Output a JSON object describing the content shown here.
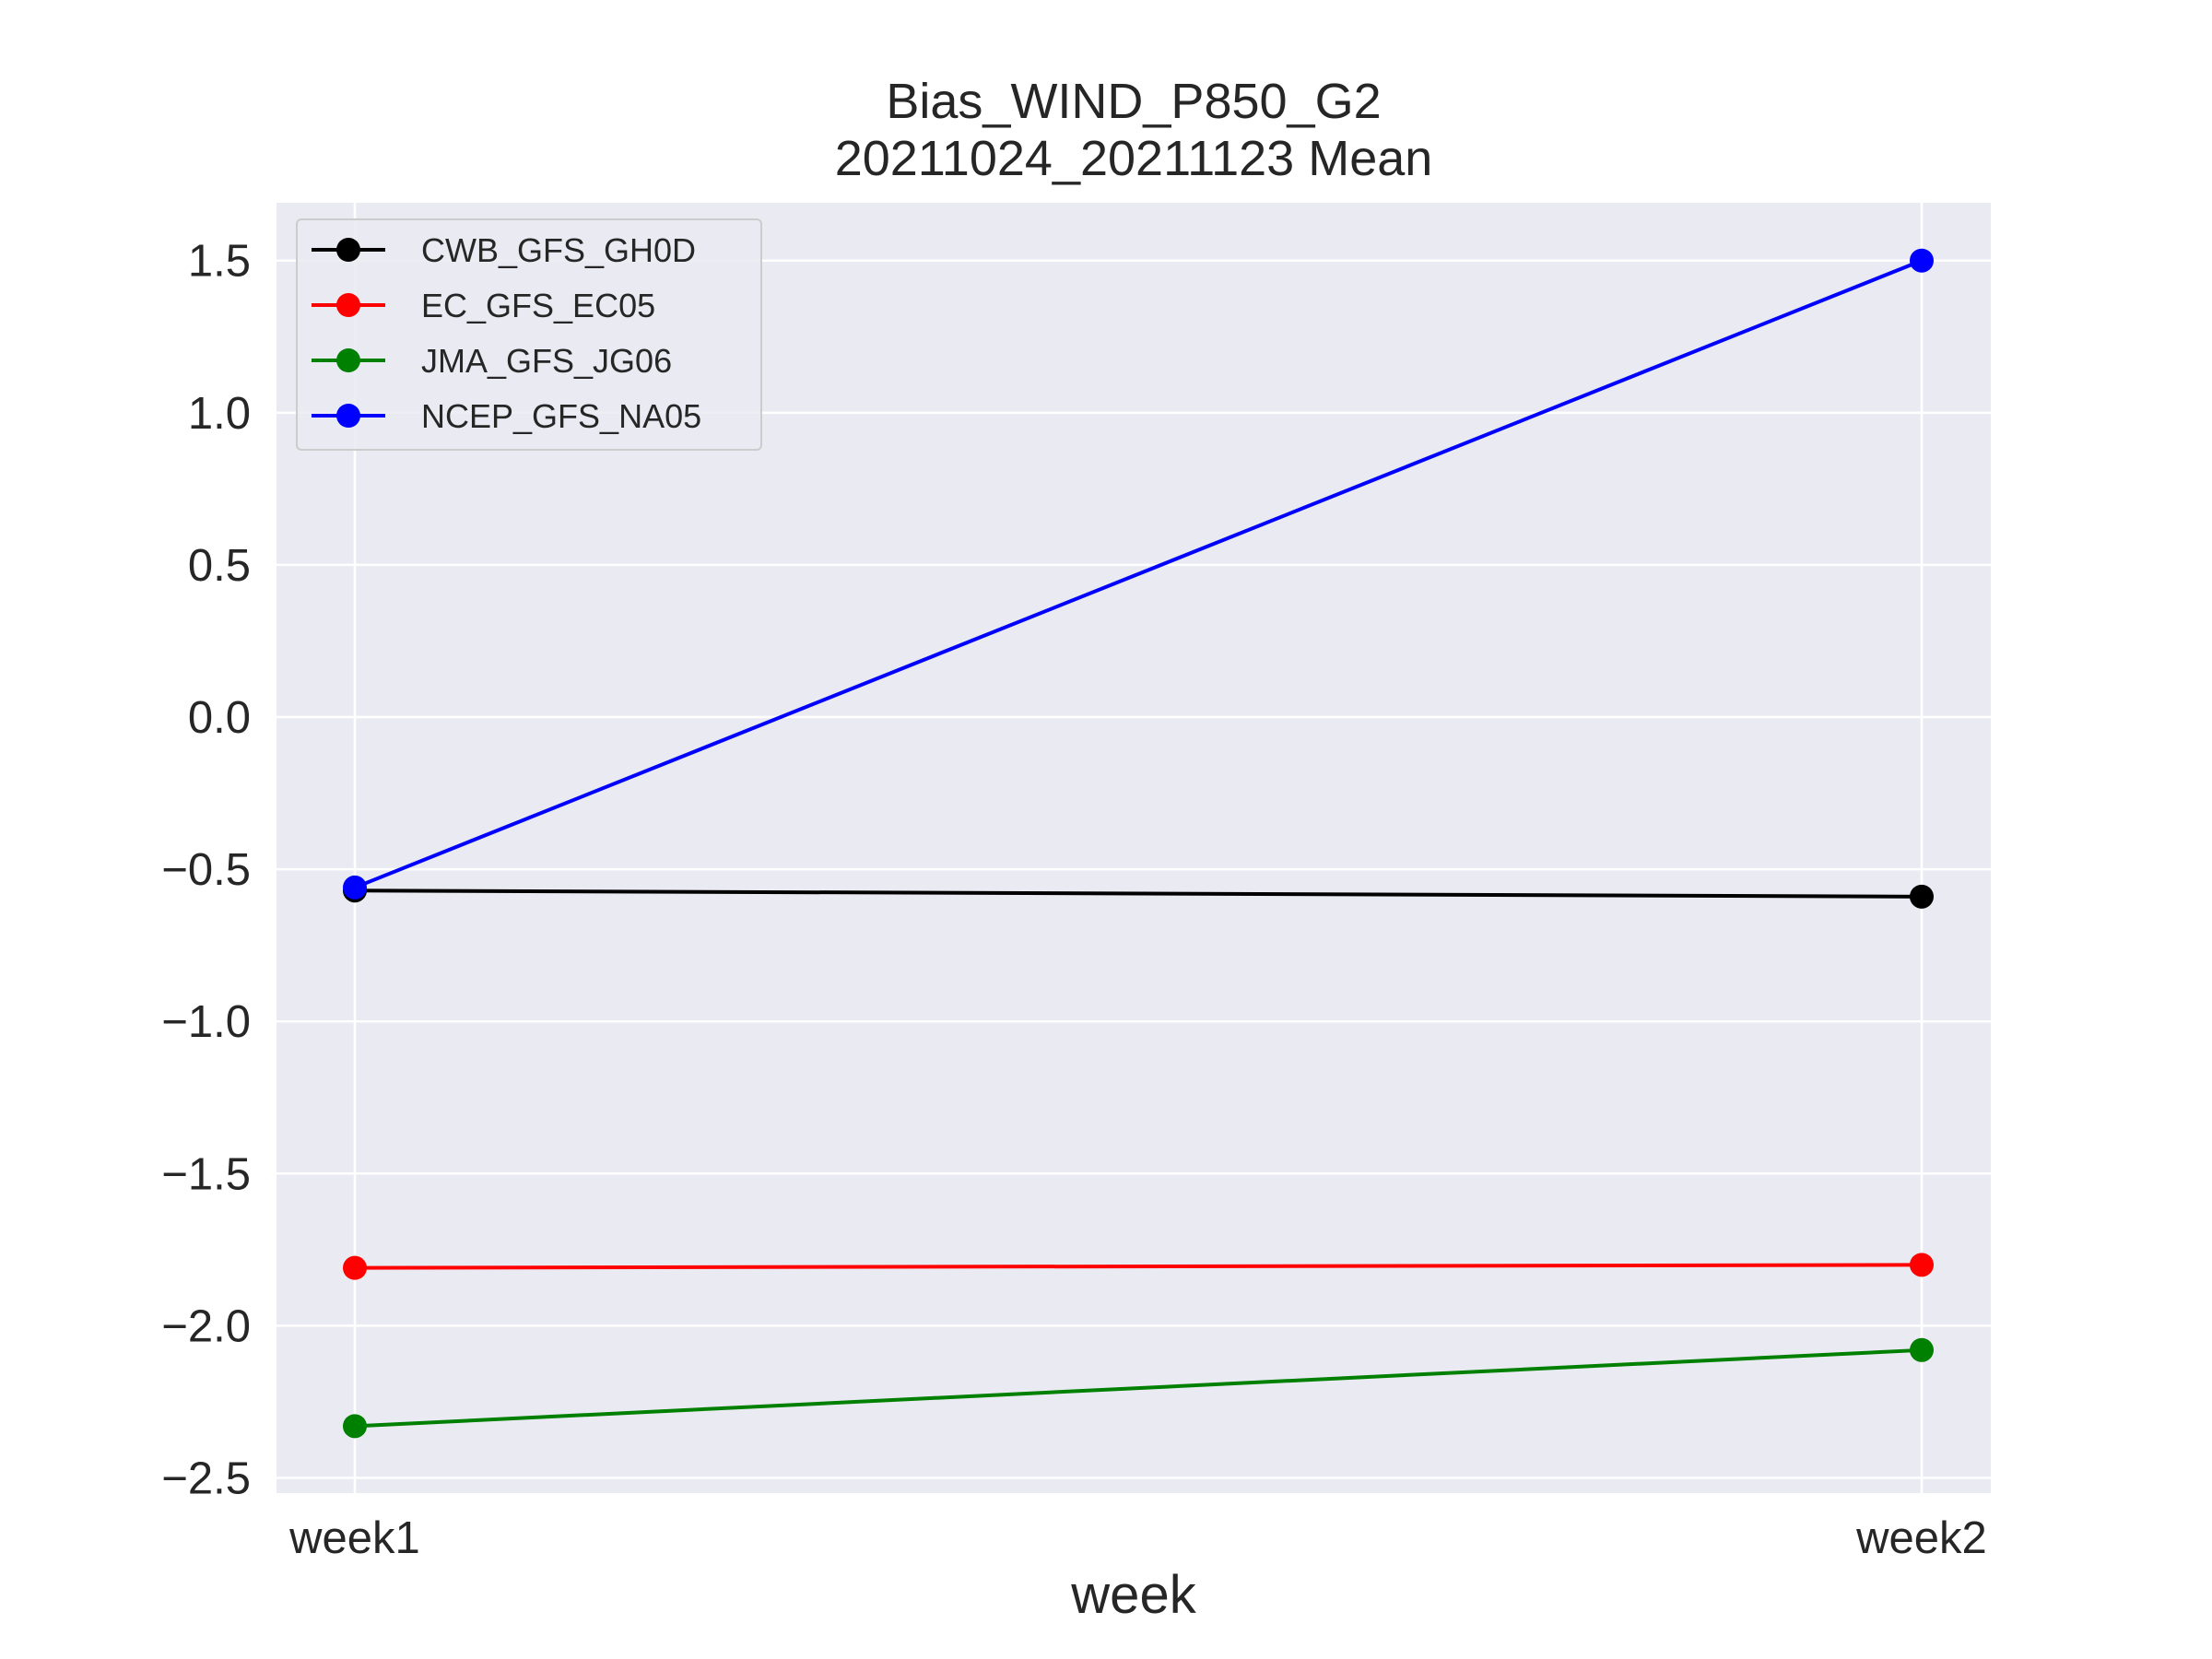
{
  "chart_data": {
    "type": "line",
    "title": "Bias_WIND_P850_G2",
    "subtitle": "20211024_20211123 Mean",
    "xlabel": "week",
    "ylabel": "",
    "categories": [
      "week1",
      "week2"
    ],
    "ylim": [
      -2.55,
      1.69
    ],
    "yticks": [
      1.5,
      1.0,
      0.5,
      0.0,
      -0.5,
      -1.0,
      -1.5,
      -2.0,
      -2.5
    ],
    "ytick_labels": [
      "1.5",
      "1.0",
      "0.5",
      "0.0",
      "−0.5",
      "−1.0",
      "−1.5",
      "−2.0",
      "−2.5"
    ],
    "grid": true,
    "legend_position": "top-left",
    "background_color": "#eaeaf2",
    "series": [
      {
        "name": "CWB_GFS_GH0D",
        "color": "#000000",
        "values": [
          -0.57,
          -0.59
        ]
      },
      {
        "name": "EC_GFS_EC05",
        "color": "#ff0000",
        "values": [
          -1.81,
          -1.8
        ]
      },
      {
        "name": "JMA_GFS_JG06",
        "color": "#008000",
        "values": [
          -2.33,
          -2.08
        ]
      },
      {
        "name": "NCEP_GFS_NA05",
        "color": "#0000ff",
        "values": [
          -0.56,
          1.5
        ]
      }
    ]
  }
}
